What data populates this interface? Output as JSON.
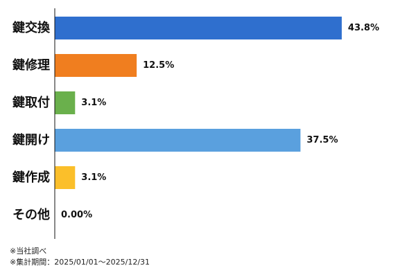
{
  "chart_data": {
    "type": "bar",
    "orientation": "horizontal",
    "categories": [
      "鍵交換",
      "鍵修理",
      "鍵取付",
      "鍵開け",
      "鍵作成",
      "その他"
    ],
    "values": [
      43.8,
      12.5,
      3.1,
      37.5,
      3.1,
      0.0
    ],
    "value_labels": [
      "43.8%",
      "12.5%",
      "3.1%",
      "37.5%",
      "3.1%",
      "0.00%"
    ],
    "colors": [
      "#2f6fce",
      "#f07e1f",
      "#6ab04c",
      "#5aa0de",
      "#fbbf2a",
      "#cccccc"
    ],
    "xlim": [
      0,
      50
    ],
    "grid": false,
    "legend": "none",
    "title": "",
    "xlabel": "",
    "ylabel": ""
  },
  "notes": [
    "※当社調べ",
    "※集計期間：2025/01/01～2025/12/31"
  ]
}
